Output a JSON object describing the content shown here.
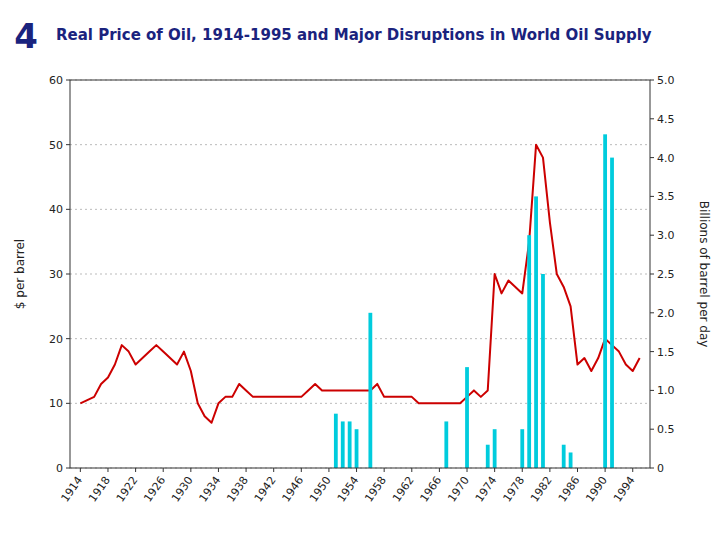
{
  "chart_data": {
    "type": "bar",
    "title": "Real Price of Oil, 1914-1995 and Major Disruptions in World Oil Supply",
    "annotations": [
      "4"
    ],
    "y_label": "$ per barrel",
    "y2_label": "Billions of barrel per day",
    "series": [
      {
        "type": "line",
        "color": "#cc0000",
        "axis": "y",
        "x": [
          1914,
          1915,
          1916,
          1917,
          1918,
          1919,
          1920,
          1921,
          1922,
          1923,
          1924,
          1925,
          1926,
          1927,
          1928,
          1929,
          1930,
          1931,
          1932,
          1933,
          1934,
          1935,
          1936,
          1937,
          1938,
          1939,
          1940,
          1941,
          1942,
          1943,
          1944,
          1945,
          1946,
          1947,
          1948,
          1949,
          1950,
          1951,
          1952,
          1953,
          1954,
          1955,
          1956,
          1957,
          1958,
          1959,
          1960,
          1961,
          1962,
          1963,
          1964,
          1965,
          1966,
          1967,
          1968,
          1969,
          1970,
          1971,
          1972,
          1973,
          1974,
          1975,
          1976,
          1977,
          1978,
          1979,
          1980,
          1981,
          1982,
          1983,
          1984,
          1985,
          1986,
          1987,
          1988,
          1989,
          1990,
          1991,
          1992,
          1993,
          1994,
          1995
        ],
        "values": [
          10,
          10.5,
          11,
          13,
          14,
          16,
          19,
          18,
          16,
          17,
          18,
          19,
          18,
          17,
          16,
          18,
          15,
          10,
          8,
          7,
          10,
          11,
          11,
          13,
          12,
          11,
          11,
          11,
          11,
          11,
          11,
          11,
          11,
          12,
          13,
          12,
          12,
          12,
          12,
          12,
          12,
          12,
          12,
          13,
          11,
          11,
          11,
          11,
          11,
          10,
          10,
          10,
          10,
          10,
          10,
          10,
          11,
          12,
          11,
          12,
          30,
          27,
          29,
          28,
          27,
          35,
          50,
          48,
          38,
          30,
          28,
          25,
          16,
          17,
          15,
          17,
          20,
          19,
          18,
          16,
          15,
          17
        ]
      },
      {
        "type": "bar",
        "color": "#00ccdd",
        "axis": "y2",
        "x": [
          1951,
          1952,
          1953,
          1954,
          1956,
          1967,
          1970,
          1973,
          1974,
          1978,
          1979,
          1980,
          1981,
          1984,
          1985,
          1990,
          1991
        ],
        "values": [
          0.7,
          0.6,
          0.6,
          0.5,
          2.0,
          0.6,
          1.3,
          0.3,
          0.5,
          0.5,
          3.0,
          3.5,
          2.5,
          0.3,
          0.2,
          4.3,
          4.0
        ]
      }
    ],
    "xlim": [
      1912.5,
      1996.5
    ],
    "xticks": [
      1914,
      1918,
      1922,
      1926,
      1930,
      1934,
      1938,
      1942,
      1946,
      1950,
      1954,
      1958,
      1962,
      1966,
      1970,
      1974,
      1978,
      1982,
      1986,
      1990,
      1994
    ],
    "ylim": [
      0,
      60
    ],
    "yticks": [
      0,
      10,
      20,
      30,
      40,
      50,
      60
    ],
    "y2lim": [
      0,
      5
    ],
    "y2ticks": [
      0,
      0.5,
      {
        "value": 1,
        "label": "1.0"
      },
      1.5,
      {
        "value": 2,
        "label": "2.0"
      },
      2.5,
      {
        "value": 3,
        "label": "3.0"
      },
      3.5,
      {
        "value": 4,
        "label": "4.0"
      },
      4.5,
      {
        "value": 5,
        "label": "5.0"
      }
    ],
    "grid": true
  }
}
